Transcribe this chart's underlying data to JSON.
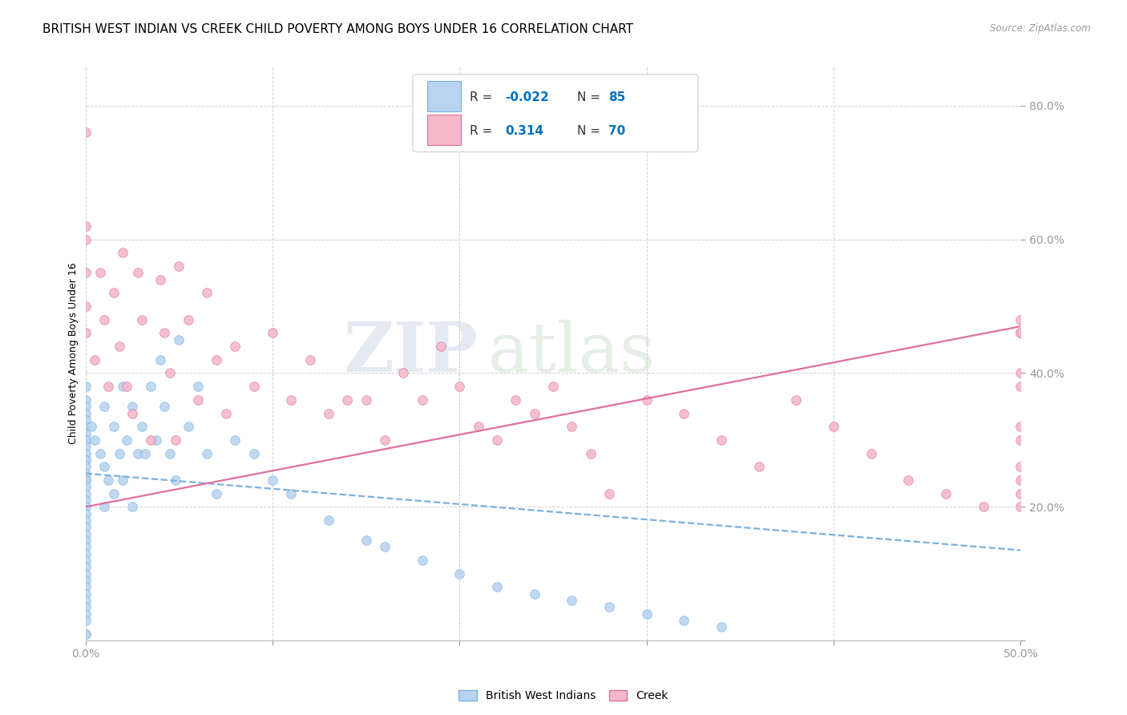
{
  "title": "BRITISH WEST INDIAN VS CREEK CHILD POVERTY AMONG BOYS UNDER 16 CORRELATION CHART",
  "source": "Source: ZipAtlas.com",
  "ylabel": "Child Poverty Among Boys Under 16",
  "watermark_zip": "ZIP",
  "watermark_atlas": "atlas",
  "bwi": {
    "name": "British West Indians",
    "R": -0.022,
    "N": 85,
    "color": "#b8d4f0",
    "edge_color": "#7ab0e0",
    "line_color": "#7ab0e0",
    "line_style": "dashed",
    "trend_x0": 0.0,
    "trend_y0": 0.25,
    "trend_x1": 0.5,
    "trend_y1": 0.135,
    "x": [
      0.0,
      0.0,
      0.0,
      0.0,
      0.0,
      0.0,
      0.0,
      0.0,
      0.0,
      0.0,
      0.0,
      0.0,
      0.0,
      0.0,
      0.0,
      0.0,
      0.0,
      0.0,
      0.0,
      0.0,
      0.0,
      0.0,
      0.0,
      0.0,
      0.0,
      0.0,
      0.0,
      0.0,
      0.0,
      0.0,
      0.0,
      0.0,
      0.0,
      0.0,
      0.0,
      0.0,
      0.0,
      0.0,
      0.0,
      0.0,
      0.003,
      0.005,
      0.008,
      0.01,
      0.01,
      0.01,
      0.012,
      0.015,
      0.015,
      0.018,
      0.02,
      0.02,
      0.022,
      0.025,
      0.025,
      0.028,
      0.03,
      0.032,
      0.035,
      0.038,
      0.04,
      0.042,
      0.045,
      0.048,
      0.05,
      0.055,
      0.06,
      0.065,
      0.07,
      0.08,
      0.09,
      0.1,
      0.11,
      0.13,
      0.15,
      0.16,
      0.18,
      0.2,
      0.22,
      0.24,
      0.26,
      0.28,
      0.3,
      0.32,
      0.34
    ],
    "y": [
      0.38,
      0.36,
      0.35,
      0.34,
      0.33,
      0.32,
      0.31,
      0.3,
      0.3,
      0.29,
      0.28,
      0.27,
      0.27,
      0.26,
      0.25,
      0.24,
      0.24,
      0.23,
      0.22,
      0.21,
      0.2,
      0.19,
      0.18,
      0.17,
      0.16,
      0.15,
      0.14,
      0.13,
      0.12,
      0.11,
      0.1,
      0.09,
      0.08,
      0.07,
      0.06,
      0.05,
      0.04,
      0.03,
      0.01,
      0.01,
      0.32,
      0.3,
      0.28,
      0.35,
      0.26,
      0.2,
      0.24,
      0.32,
      0.22,
      0.28,
      0.38,
      0.24,
      0.3,
      0.35,
      0.2,
      0.28,
      0.32,
      0.28,
      0.38,
      0.3,
      0.42,
      0.35,
      0.28,
      0.24,
      0.45,
      0.32,
      0.38,
      0.28,
      0.22,
      0.3,
      0.28,
      0.24,
      0.22,
      0.18,
      0.15,
      0.14,
      0.12,
      0.1,
      0.08,
      0.07,
      0.06,
      0.05,
      0.04,
      0.03,
      0.02
    ]
  },
  "creek": {
    "name": "Creek",
    "R": 0.314,
    "N": 70,
    "color": "#f4b8c8",
    "edge_color": "#e070a0",
    "line_color": "#e070a0",
    "line_style": "solid",
    "trend_x0": 0.0,
    "trend_y0": 0.2,
    "trend_x1": 0.5,
    "trend_y1": 0.47,
    "x": [
      0.0,
      0.0,
      0.0,
      0.0,
      0.0,
      0.0,
      0.005,
      0.008,
      0.01,
      0.012,
      0.015,
      0.018,
      0.02,
      0.022,
      0.025,
      0.028,
      0.03,
      0.035,
      0.04,
      0.042,
      0.045,
      0.048,
      0.05,
      0.055,
      0.06,
      0.065,
      0.07,
      0.075,
      0.08,
      0.09,
      0.1,
      0.11,
      0.12,
      0.13,
      0.14,
      0.15,
      0.16,
      0.17,
      0.18,
      0.19,
      0.2,
      0.21,
      0.22,
      0.23,
      0.24,
      0.25,
      0.26,
      0.27,
      0.28,
      0.3,
      0.32,
      0.34,
      0.36,
      0.38,
      0.4,
      0.42,
      0.44,
      0.46,
      0.48,
      0.5,
      0.5,
      0.5,
      0.5,
      0.5,
      0.5,
      0.5,
      0.5,
      0.5,
      0.5,
      0.5
    ],
    "y": [
      0.76,
      0.6,
      0.55,
      0.5,
      0.46,
      0.62,
      0.42,
      0.55,
      0.48,
      0.38,
      0.52,
      0.44,
      0.58,
      0.38,
      0.34,
      0.55,
      0.48,
      0.3,
      0.54,
      0.46,
      0.4,
      0.3,
      0.56,
      0.48,
      0.36,
      0.52,
      0.42,
      0.34,
      0.44,
      0.38,
      0.46,
      0.36,
      0.42,
      0.34,
      0.36,
      0.36,
      0.3,
      0.4,
      0.36,
      0.44,
      0.38,
      0.32,
      0.3,
      0.36,
      0.34,
      0.38,
      0.32,
      0.28,
      0.22,
      0.36,
      0.34,
      0.3,
      0.26,
      0.36,
      0.32,
      0.28,
      0.24,
      0.22,
      0.2,
      0.46,
      0.38,
      0.3,
      0.24,
      0.22,
      0.48,
      0.4,
      0.32,
      0.26,
      0.2,
      0.46
    ]
  },
  "xlim": [
    0.0,
    0.5
  ],
  "ylim": [
    0.0,
    0.86
  ],
  "yticks": [
    0.0,
    0.2,
    0.4,
    0.6,
    0.8
  ],
  "ytick_labels": [
    "",
    "20.0%",
    "40.0%",
    "60.0%",
    "80.0%"
  ],
  "xticks": [
    0.0,
    0.1,
    0.2,
    0.3,
    0.4,
    0.5
  ],
  "xtick_labels": [
    "0.0%",
    "",
    "",
    "",
    "",
    "50.0%"
  ],
  "grid_color": "#d0d0d0",
  "bg_color": "#ffffff",
  "title_fontsize": 11,
  "axis_label_fontsize": 9,
  "tick_fontsize": 10,
  "accent_color": "#0070c0",
  "legend_text_color": "#0070c0"
}
